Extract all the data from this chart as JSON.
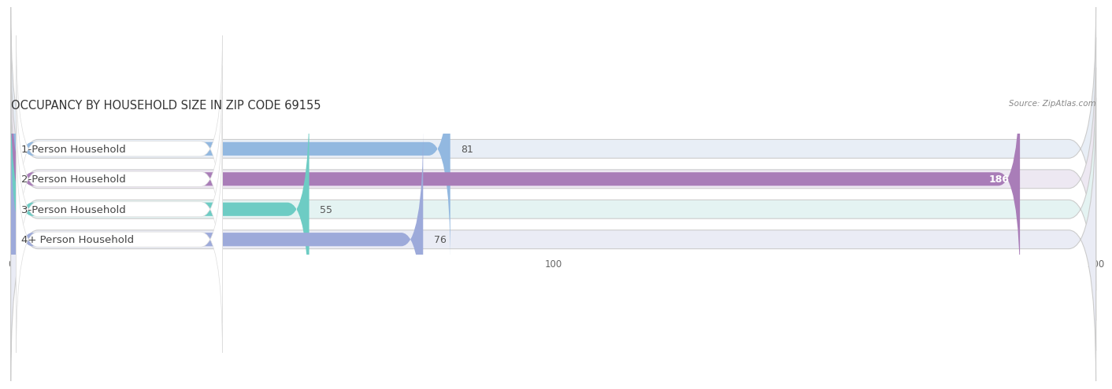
{
  "categories": [
    "1-Person Household",
    "2-Person Household",
    "3-Person Household",
    "4+ Person Household"
  ],
  "values": [
    81,
    186,
    55,
    76
  ],
  "bar_colors": [
    "#92b8e0",
    "#a97db8",
    "#6dccc4",
    "#9daada"
  ],
  "bar_bg_colors": [
    "#e8eef6",
    "#ede8f2",
    "#e4f3f2",
    "#eaecf5"
  ],
  "label_bg_color": "#ffffff",
  "title": "OCCUPANCY BY HOUSEHOLD SIZE IN ZIP CODE 69155",
  "source": "Source: ZipAtlas.com",
  "xlim": [
    0,
    200
  ],
  "xticks": [
    0,
    100,
    200
  ],
  "title_fontsize": 10.5,
  "label_fontsize": 9.5,
  "value_fontsize": 9,
  "bar_height": 0.62,
  "background_color": "#f5f5f8",
  "row_bg_color": "#ebebf0"
}
